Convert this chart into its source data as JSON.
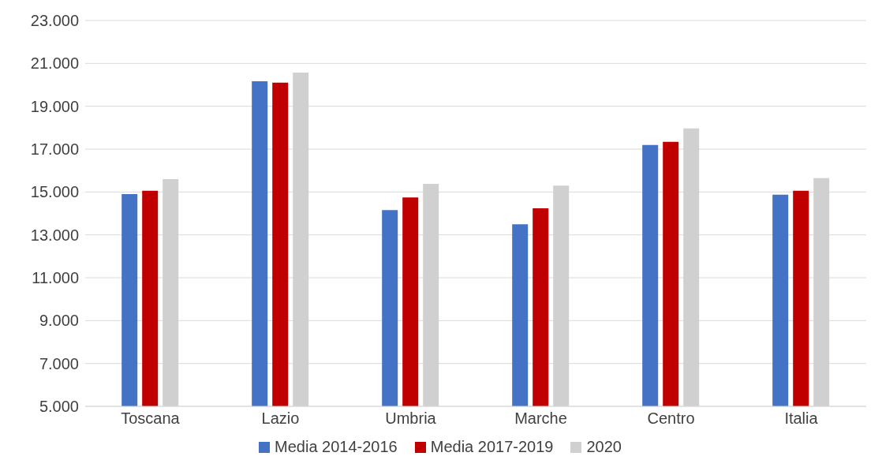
{
  "chart_data": {
    "type": "bar",
    "categories": [
      "Toscana",
      "Lazio",
      "Umbria",
      "Marche",
      "Centro",
      "Italia"
    ],
    "series": [
      {
        "name": "Media 2014-2016",
        "color": "#4472c4",
        "values": [
          14900,
          20170,
          14160,
          13490,
          17190,
          14870
        ]
      },
      {
        "name": "Media 2017-2019",
        "color": "#c00000",
        "values": [
          15060,
          20100,
          14750,
          14240,
          17340,
          15060
        ]
      },
      {
        "name": "2020",
        "color": "#d0d0d0",
        "values": [
          15600,
          20570,
          15380,
          15300,
          17970,
          15650
        ]
      }
    ],
    "ylim": [
      5000,
      23000
    ],
    "yticks": [
      {
        "value": 5000,
        "label": "5.000"
      },
      {
        "value": 7000,
        "label": "7.000"
      },
      {
        "value": 9000,
        "label": "9.000"
      },
      {
        "value": 11000,
        "label": "11.000"
      },
      {
        "value": 13000,
        "label": "13.000"
      },
      {
        "value": 15000,
        "label": "15.000"
      },
      {
        "value": 17000,
        "label": "17.000"
      },
      {
        "value": 19000,
        "label": "19.000"
      },
      {
        "value": 21000,
        "label": "21.000"
      },
      {
        "value": 23000,
        "label": "23.000"
      }
    ],
    "grid": "y",
    "legend": "bottom"
  }
}
